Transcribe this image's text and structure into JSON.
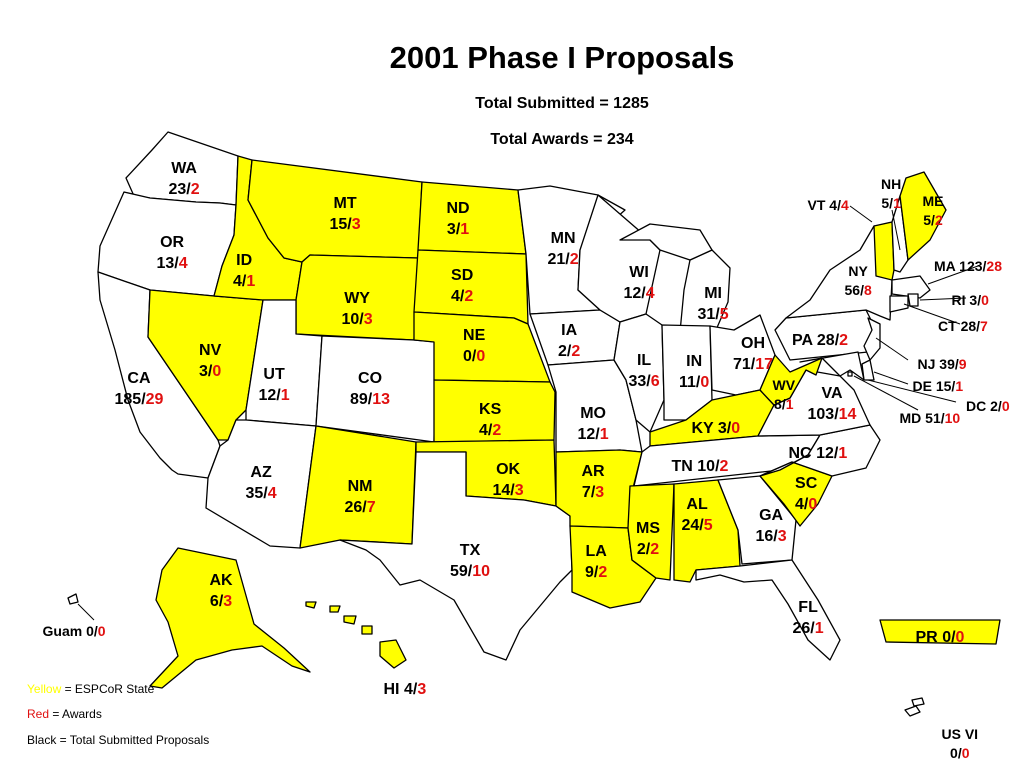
{
  "title": "2001 Phase I Proposals",
  "total_submitted": "Total Submitted = 1285",
  "total_awards": "Total Awards = 234",
  "colors": {
    "epscor": "#ffff00",
    "non_epscor": "#ffffff",
    "awards": "#e01010",
    "outline": "#000000"
  },
  "legend": [
    {
      "word": "Yellow",
      "text": " = ESPCoR State",
      "color": "#ffff00"
    },
    {
      "word": "Red",
      "text": " = Awards",
      "color": "#e01010"
    },
    {
      "word": "",
      "text": "Black = Total Submitted Proposals",
      "color": "#000000"
    }
  ],
  "states": [
    {
      "abbr": "WA",
      "submitted": "23",
      "awards": "2",
      "epscor": false
    },
    {
      "abbr": "OR",
      "submitted": "13",
      "awards": "4",
      "epscor": false
    },
    {
      "abbr": "CA",
      "submitted": "185",
      "awards": "29",
      "epscor": false
    },
    {
      "abbr": "NV",
      "submitted": "3",
      "awards": "0",
      "epscor": true
    },
    {
      "abbr": "ID",
      "submitted": "4",
      "awards": "1",
      "epscor": true
    },
    {
      "abbr": "MT",
      "submitted": "15",
      "awards": "3",
      "epscor": true
    },
    {
      "abbr": "WY",
      "submitted": "10",
      "awards": "3",
      "epscor": true
    },
    {
      "abbr": "UT",
      "submitted": "12",
      "awards": "1",
      "epscor": false
    },
    {
      "abbr": "CO",
      "submitted": "89",
      "awards": "13",
      "epscor": false
    },
    {
      "abbr": "AZ",
      "submitted": "35",
      "awards": "4",
      "epscor": false
    },
    {
      "abbr": "NM",
      "submitted": "26",
      "awards": "7",
      "epscor": true
    },
    {
      "abbr": "ND",
      "submitted": "3",
      "awards": "1",
      "epscor": true
    },
    {
      "abbr": "SD",
      "submitted": "4",
      "awards": "2",
      "epscor": true
    },
    {
      "abbr": "NE",
      "submitted": "0",
      "awards": "0",
      "epscor": true
    },
    {
      "abbr": "KS",
      "submitted": "4",
      "awards": "2",
      "epscor": true
    },
    {
      "abbr": "OK",
      "submitted": "14",
      "awards": "3",
      "epscor": true
    },
    {
      "abbr": "TX",
      "submitted": "59",
      "awards": "10",
      "epscor": false
    },
    {
      "abbr": "MN",
      "submitted": "21",
      "awards": "2",
      "epscor": false
    },
    {
      "abbr": "IA",
      "submitted": "2",
      "awards": "2",
      "epscor": false
    },
    {
      "abbr": "MO",
      "submitted": "12",
      "awards": "1",
      "epscor": false
    },
    {
      "abbr": "AR",
      "submitted": "7",
      "awards": "3",
      "epscor": true
    },
    {
      "abbr": "LA",
      "submitted": "9",
      "awards": "2",
      "epscor": true
    },
    {
      "abbr": "WI",
      "submitted": "12",
      "awards": "4",
      "epscor": false
    },
    {
      "abbr": "IL",
      "submitted": "33",
      "awards": "6",
      "epscor": false
    },
    {
      "abbr": "MI",
      "submitted": "31",
      "awards": "5",
      "epscor": false
    },
    {
      "abbr": "IN",
      "submitted": "11",
      "awards": "0",
      "epscor": false
    },
    {
      "abbr": "OH",
      "submitted": "71",
      "awards": "17",
      "epscor": false
    },
    {
      "abbr": "KY",
      "submitted": "3",
      "awards": "0",
      "epscor": true
    },
    {
      "abbr": "TN",
      "submitted": "10",
      "awards": "2",
      "epscor": false
    },
    {
      "abbr": "MS",
      "submitted": "2",
      "awards": "2",
      "epscor": true
    },
    {
      "abbr": "AL",
      "submitted": "24",
      "awards": "5",
      "epscor": true
    },
    {
      "abbr": "GA",
      "submitted": "16",
      "awards": "3",
      "epscor": false
    },
    {
      "abbr": "FL",
      "submitted": "26",
      "awards": "1",
      "epscor": false
    },
    {
      "abbr": "SC",
      "submitted": "4",
      "awards": "0",
      "epscor": true
    },
    {
      "abbr": "NC",
      "submitted": "12",
      "awards": "1",
      "epscor": false
    },
    {
      "abbr": "VA",
      "submitted": "103",
      "awards": "14",
      "epscor": false
    },
    {
      "abbr": "WV",
      "submitted": "8",
      "awards": "1",
      "epscor": true
    },
    {
      "abbr": "PA",
      "submitted": "28",
      "awards": "2",
      "epscor": false
    },
    {
      "abbr": "NY",
      "submitted": "56",
      "awards": "8",
      "epscor": false
    },
    {
      "abbr": "VT",
      "submitted": "4",
      "awards": "4",
      "epscor": true
    },
    {
      "abbr": "NH",
      "submitted": "5",
      "awards": "1",
      "epscor": false
    },
    {
      "abbr": "ME",
      "submitted": "5",
      "awards": "2",
      "epscor": true
    },
    {
      "abbr": "MA",
      "submitted": "123",
      "awards": "28",
      "epscor": false
    },
    {
      "abbr": "RI",
      "submitted": "3",
      "awards": "0",
      "epscor": false
    },
    {
      "abbr": "CT",
      "submitted": "28",
      "awards": "7",
      "epscor": false
    },
    {
      "abbr": "NJ",
      "submitted": "39",
      "awards": "9",
      "epscor": false
    },
    {
      "abbr": "DE",
      "submitted": "15",
      "awards": "1",
      "epscor": false
    },
    {
      "abbr": "DC",
      "submitted": "2",
      "awards": "0",
      "epscor": false
    },
    {
      "abbr": "MD",
      "submitted": "51",
      "awards": "10",
      "epscor": false
    },
    {
      "abbr": "AK",
      "submitted": "6",
      "awards": "3",
      "epscor": true
    },
    {
      "abbr": "HI",
      "submitted": "4",
      "awards": "3",
      "epscor": true
    },
    {
      "abbr": "Guam",
      "submitted": "0",
      "awards": "0",
      "epscor": false
    },
    {
      "abbr": "PR",
      "submitted": "0",
      "awards": "0",
      "epscor": true
    },
    {
      "abbr": "US VI",
      "submitted": "0",
      "awards": "0",
      "epscor": false
    }
  ]
}
